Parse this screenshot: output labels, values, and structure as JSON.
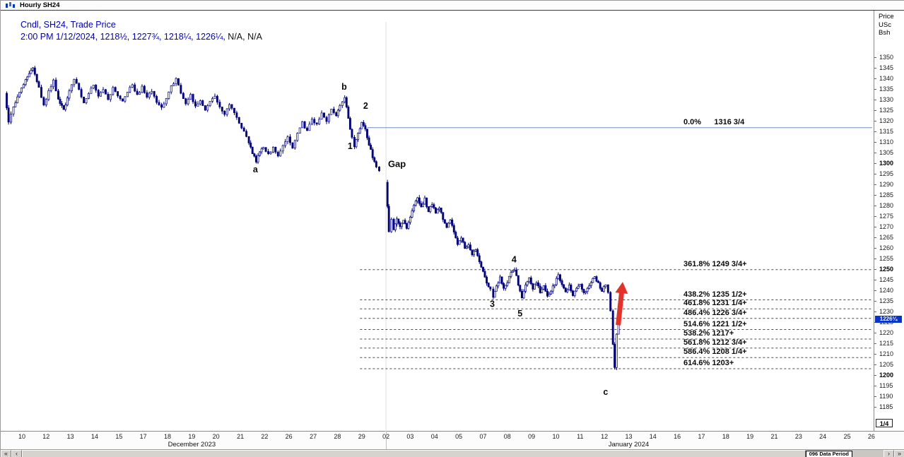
{
  "window": {
    "title": "Hourly SH24"
  },
  "header": {
    "line1": "Cndl, SH24, Trade Price",
    "line2_blue": "2:00 PM 1/12/2024, 1218½, 1227¾, 1218¼, 1226¼,",
    "line2_black": " N/A, N/A"
  },
  "price_axis": {
    "header_lines": [
      "Price",
      "USc",
      "Bsh"
    ],
    "max": 1350,
    "min": 1185,
    "step": 5,
    "bold_values": [
      1300,
      1250,
      1200
    ],
    "current_price_label": "1226¼",
    "highlight_color": "#0533cc",
    "min_tick_label": "1/4"
  },
  "scrollbar": {
    "left_buttons": [
      "«",
      "‹"
    ],
    "right_buttons": [
      "›",
      "»"
    ],
    "data_period": "096 Data Period"
  },
  "colors": {
    "candle": "#000082",
    "header_text": "#0000cd",
    "fib_line": "#4a4a4a",
    "origin_line": "#6f8fb4",
    "arrow": "#e53229"
  },
  "chart_data": {
    "type": "candlestick",
    "title": "Cndl, SH24, Trade Price",
    "instrument": "SH24",
    "interval": "Hourly",
    "timestamp": "2:00 PM 1/12/2024",
    "last_bar": {
      "open": 1218.5,
      "high": 1227.75,
      "low": 1218.25,
      "close": 1226.25
    },
    "current_price": 1226.25,
    "ylabel": "Price USc Bsh",
    "ylim": [
      1185,
      1350
    ],
    "y_tick_step": 5,
    "x_tick_labels": [
      "10",
      "12",
      "13",
      "14",
      "15",
      "17",
      "18",
      "19",
      "20",
      "21",
      "22",
      "26",
      "27",
      "28",
      "29",
      "02",
      "03",
      "04",
      "05",
      "07",
      "08",
      "09",
      "10",
      "11",
      "12",
      "13",
      "14",
      "16",
      "17",
      "18",
      "19",
      "21",
      "23",
      "24",
      "25",
      "26"
    ],
    "x_months": [
      {
        "label": "December 2023",
        "from_index": 0,
        "to_index": 14
      },
      {
        "label": "January 2024",
        "from_index": 15,
        "to_index": 35
      }
    ],
    "month_boundary_index": 15,
    "elliott_waves": [
      {
        "label": "a",
        "u": 9.62,
        "price": 1297
      },
      {
        "label": "b",
        "u": 13.28,
        "price": 1336
      },
      {
        "label": "1",
        "u": 13.52,
        "price": 1308
      },
      {
        "label": "2",
        "u": 14.16,
        "price": 1327
      },
      {
        "label": "3",
        "u": 19.38,
        "price": 1233.5
      },
      {
        "label": "4",
        "u": 20.28,
        "price": 1254.5
      },
      {
        "label": "5",
        "u": 20.52,
        "price": 1229
      },
      {
        "label": "c",
        "u": 24.05,
        "price": 1192
      }
    ],
    "gap_annotation": {
      "label": "Gap",
      "u": 15.45,
      "price": 1299.5
    },
    "fibonacci_extensions": {
      "start_u": 13.93,
      "origin": {
        "pct": "0.0%",
        "price": 1316.75,
        "label": "1316 3/4"
      },
      "levels": [
        {
          "pct": "361.8%",
          "price": 1249.75,
          "label": "361.8% 1249 3/4+"
        },
        {
          "pct": "438.2%",
          "price": 1235.5,
          "label": "438.2% 1235 1/2+"
        },
        {
          "pct": "461.8%",
          "price": 1231.25,
          "label": "461.8% 1231 1/4+"
        },
        {
          "pct": "486.4%",
          "price": 1226.75,
          "label": "486.4% 1226 3/4+"
        },
        {
          "pct": "514.6%",
          "price": 1221.5,
          "label": "514.6% 1221 1/2+"
        },
        {
          "pct": "538.2%",
          "price": 1217,
          "label": "538.2% 1217+"
        },
        {
          "pct": "561.8%",
          "price": 1212.75,
          "label": "561.8% 1212 3/4+"
        },
        {
          "pct": "586.4%",
          "price": 1208.25,
          "label": "586.4% 1208 1/4+"
        },
        {
          "pct": "614.6%",
          "price": 1203,
          "label": "614.6% 1203+"
        }
      ]
    },
    "trend_arrow": {
      "u": 24.66,
      "price_tip": 1244,
      "price_tail": 1223.5,
      "color": "#e53229"
    },
    "price_path_segments": [
      [
        [
          -0.7,
          1333
        ],
        [
          -0.55,
          1319
        ],
        [
          -0.35,
          1327
        ],
        [
          -0.1,
          1333
        ],
        [
          0.15,
          1340
        ],
        [
          0.45,
          1345
        ],
        [
          0.7,
          1336
        ],
        [
          0.9,
          1327
        ],
        [
          1.1,
          1334
        ],
        [
          1.3,
          1339
        ],
        [
          1.5,
          1330
        ],
        [
          1.72,
          1325
        ],
        [
          1.95,
          1334
        ],
        [
          2.15,
          1340
        ],
        [
          2.35,
          1335
        ],
        [
          2.55,
          1328
        ],
        [
          2.75,
          1333
        ],
        [
          2.95,
          1337
        ],
        [
          3.15,
          1331
        ],
        [
          3.35,
          1335
        ],
        [
          3.55,
          1330
        ],
        [
          3.75,
          1336
        ],
        [
          3.95,
          1332
        ],
        [
          4.15,
          1329
        ],
        [
          4.35,
          1334
        ],
        [
          4.55,
          1337
        ],
        [
          4.75,
          1332
        ],
        [
          4.95,
          1336
        ],
        [
          5.15,
          1331
        ],
        [
          5.35,
          1334
        ],
        [
          5.55,
          1329
        ],
        [
          5.75,
          1326
        ],
        [
          5.95,
          1331
        ],
        [
          6.15,
          1336
        ],
        [
          6.35,
          1340
        ],
        [
          6.55,
          1333
        ],
        [
          6.75,
          1328
        ],
        [
          6.95,
          1332
        ],
        [
          7.15,
          1327
        ],
        [
          7.35,
          1330
        ],
        [
          7.55,
          1325
        ],
        [
          7.75,
          1329
        ],
        [
          7.95,
          1331
        ],
        [
          8.15,
          1327
        ],
        [
          8.35,
          1323
        ],
        [
          8.55,
          1328
        ],
        [
          8.75,
          1324
        ],
        [
          8.95,
          1319
        ],
        [
          9.15,
          1315
        ],
        [
          9.35,
          1309
        ],
        [
          9.5,
          1305
        ],
        [
          9.65,
          1301
        ],
        [
          9.8,
          1305
        ],
        [
          9.95,
          1308
        ],
        [
          10.15,
          1304
        ],
        [
          10.35,
          1307
        ],
        [
          10.55,
          1303
        ],
        [
          10.75,
          1308
        ],
        [
          10.95,
          1312
        ],
        [
          11.15,
          1307
        ],
        [
          11.35,
          1314
        ],
        [
          11.55,
          1319
        ],
        [
          11.75,
          1315
        ],
        [
          11.95,
          1321
        ],
        [
          12.15,
          1318
        ],
        [
          12.35,
          1324
        ],
        [
          12.55,
          1320
        ],
        [
          12.75,
          1325
        ],
        [
          12.95,
          1323
        ],
        [
          13.1,
          1327
        ],
        [
          13.3,
          1331
        ],
        [
          13.45,
          1321
        ],
        [
          13.6,
          1312
        ],
        [
          13.7,
          1308
        ],
        [
          13.85,
          1314
        ],
        [
          14.0,
          1319
        ],
        [
          14.15,
          1316
        ],
        [
          14.3,
          1309
        ],
        [
          14.45,
          1303
        ],
        [
          14.6,
          1298
        ],
        [
          14.72,
          1296
        ]
      ],
      [
        [
          15.0,
          1291
        ],
        [
          15.06,
          1280
        ],
        [
          15.12,
          1268
        ],
        [
          15.22,
          1274
        ],
        [
          15.32,
          1269
        ],
        [
          15.45,
          1274
        ],
        [
          15.58,
          1270
        ],
        [
          15.72,
          1273
        ],
        [
          15.85,
          1269
        ],
        [
          16.0,
          1275
        ],
        [
          16.15,
          1280
        ],
        [
          16.3,
          1284
        ],
        [
          16.45,
          1279
        ],
        [
          16.6,
          1283
        ],
        [
          16.75,
          1277
        ],
        [
          16.9,
          1281
        ],
        [
          17.05,
          1276
        ],
        [
          17.2,
          1279
        ],
        [
          17.35,
          1274
        ],
        [
          17.5,
          1270
        ],
        [
          17.65,
          1273
        ],
        [
          17.8,
          1268
        ],
        [
          17.95,
          1262
        ],
        [
          18.1,
          1265
        ],
        [
          18.25,
          1260
        ],
        [
          18.4,
          1262
        ],
        [
          18.55,
          1257
        ],
        [
          18.7,
          1259
        ],
        [
          18.85,
          1254
        ],
        [
          19.0,
          1249
        ],
        [
          19.15,
          1244
        ],
        [
          19.3,
          1240
        ],
        [
          19.42,
          1236.5
        ],
        [
          19.55,
          1242
        ],
        [
          19.7,
          1246
        ],
        [
          19.85,
          1241
        ],
        [
          20.0,
          1244
        ],
        [
          20.15,
          1248
        ],
        [
          20.3,
          1250
        ],
        [
          20.45,
          1243
        ],
        [
          20.6,
          1236.5
        ],
        [
          20.75,
          1242
        ],
        [
          20.9,
          1246
        ],
        [
          21.05,
          1241
        ],
        [
          21.2,
          1244
        ],
        [
          21.35,
          1239
        ],
        [
          21.5,
          1242
        ],
        [
          21.65,
          1237
        ],
        [
          21.8,
          1240
        ],
        [
          21.95,
          1243
        ],
        [
          22.1,
          1247
        ],
        [
          22.25,
          1243
        ],
        [
          22.4,
          1239
        ],
        [
          22.55,
          1242
        ],
        [
          22.7,
          1238
        ],
        [
          22.85,
          1241
        ],
        [
          23.0,
          1243
        ],
        [
          23.15,
          1239
        ],
        [
          23.3,
          1241
        ],
        [
          23.45,
          1244
        ],
        [
          23.6,
          1246
        ],
        [
          23.75,
          1243
        ],
        [
          23.9,
          1240
        ],
        [
          24.05,
          1243
        ],
        [
          24.15,
          1239
        ],
        [
          24.25,
          1230
        ],
        [
          24.35,
          1214
        ],
        [
          24.42,
          1203.5
        ],
        [
          24.5,
          1219
        ],
        [
          24.58,
          1226.25
        ]
      ]
    ]
  }
}
